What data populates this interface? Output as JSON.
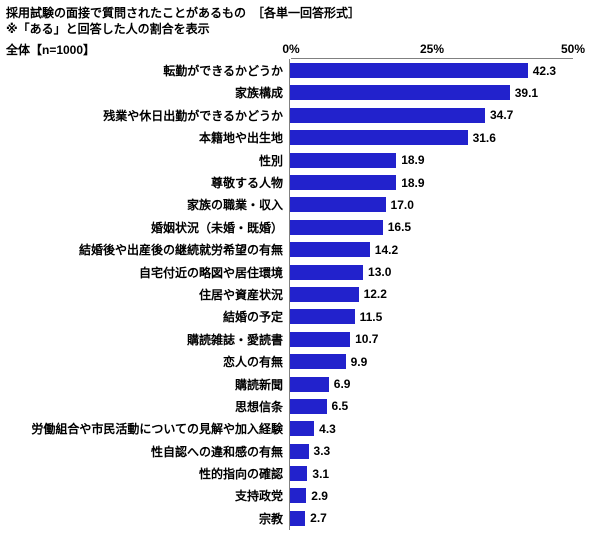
{
  "header": {
    "title": "採用試験の面接で質問されたことがあるもの　［各単一回答形式］",
    "subtitle": "※「ある」と回答した人の割合を表示",
    "sample": "全体【n=1000】"
  },
  "chart_data": {
    "type": "bar",
    "orientation": "horizontal",
    "title": "採用試験の面接で質問されたことがあるもの",
    "categories": [
      "転勤ができるかどうか",
      "家族構成",
      "残業や休日出勤ができるかどうか",
      "本籍地や出生地",
      "性別",
      "尊敬する人物",
      "家族の職業・収入",
      "婚姻状況（未婚・既婚）",
      "結婚後や出産後の継続就労希望の有無",
      "自宅付近の略図や居住環境",
      "住居や資産状況",
      "結婚の予定",
      "購読雑誌・愛読書",
      "恋人の有無",
      "購読新聞",
      "思想信条",
      "労働組合や市民活動についての見解や加入経験",
      "性自認への違和感の有無",
      "性的指向の確認",
      "支持政党",
      "宗教"
    ],
    "values": [
      42.3,
      39.1,
      34.7,
      31.6,
      18.9,
      18.9,
      17.0,
      16.5,
      14.2,
      13.0,
      12.2,
      11.5,
      10.7,
      9.9,
      6.9,
      6.5,
      4.3,
      3.3,
      3.1,
      2.9,
      2.7
    ],
    "xlim": [
      0,
      50
    ],
    "xticks": [
      "0%",
      "25%",
      "50%"
    ],
    "bar_color": "#2222cc",
    "axis_color": "#808080",
    "grid": false,
    "legend": "none",
    "value_labels": "outside-end, one decimal"
  }
}
